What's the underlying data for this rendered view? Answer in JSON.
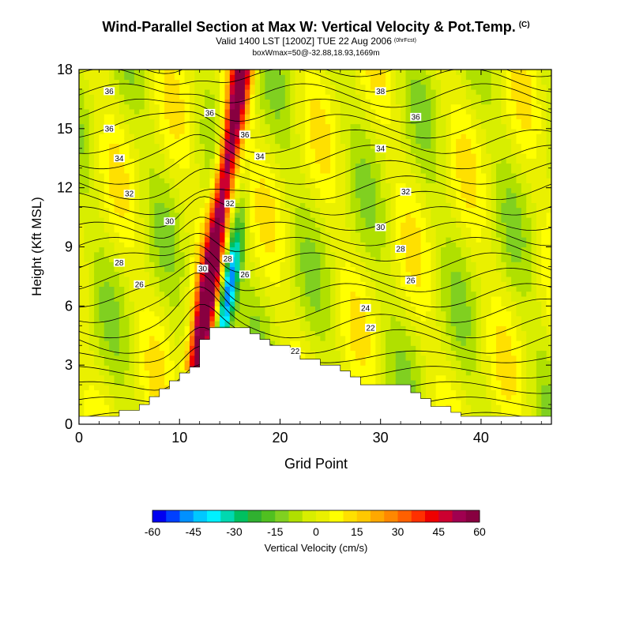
{
  "header": {
    "title": "Wind-Parallel Section at Max W: Vertical Velocity & Pot.Temp.",
    "title_mark": "(C)",
    "subtitle": "Valid 1400 LST [1200Z] TUE 22 Aug 2006",
    "subtitle_sup": "(0hrFcst)",
    "box_line": "boxWmax=50@-32.88,18.93,1669m"
  },
  "chart_data": {
    "type": "heatmap",
    "xlabel": "Grid Point",
    "ylabel": "Height (Kft MSL)",
    "xlim": [
      0,
      47
    ],
    "ylim": [
      0,
      18
    ],
    "x_ticks": [
      0,
      10,
      20,
      30,
      40
    ],
    "y_ticks": [
      0,
      3,
      6,
      9,
      12,
      15,
      18
    ],
    "colorbar": {
      "label": "Vertical Velocity (cm/s)",
      "tick_labels": [
        "-60",
        "-45",
        "-30",
        "-15",
        "0",
        "15",
        "30",
        "45",
        "60"
      ],
      "tick_values": [
        -60,
        -45,
        -30,
        -15,
        0,
        15,
        30,
        45,
        60
      ],
      "levels": [
        -60,
        -55,
        -50,
        -45,
        -40,
        -35,
        -30,
        -25,
        -20,
        -15,
        -10,
        -5,
        0,
        5,
        10,
        15,
        20,
        25,
        30,
        35,
        40,
        45,
        50,
        55,
        60
      ],
      "colors": [
        "#0000f0",
        "#0040ff",
        "#0090ff",
        "#00c8ff",
        "#00f0ff",
        "#00d8b0",
        "#00c060",
        "#30b030",
        "#50c020",
        "#80d020",
        "#b0e000",
        "#d8ee00",
        "#eaf000",
        "#ffff00",
        "#ffe000",
        "#ffc800",
        "#ffa800",
        "#ff8800",
        "#ff6000",
        "#ff3000",
        "#ee0000",
        "#cc0030",
        "#a00050",
        "#880040"
      ]
    },
    "terrain_top_kft": [
      [
        0,
        0.4
      ],
      [
        4,
        0.4
      ],
      [
        4,
        0.7
      ],
      [
        6,
        0.7
      ],
      [
        6,
        1.0
      ],
      [
        7,
        1.0
      ],
      [
        7,
        1.4
      ],
      [
        8,
        1.4
      ],
      [
        8,
        1.8
      ],
      [
        9,
        1.8
      ],
      [
        9,
        2.2
      ],
      [
        10,
        2.2
      ],
      [
        10,
        2.6
      ],
      [
        11,
        2.6
      ],
      [
        11,
        2.9
      ],
      [
        12,
        2.9
      ],
      [
        12,
        4.3
      ],
      [
        13,
        4.3
      ],
      [
        13,
        4.9
      ],
      [
        17,
        4.9
      ],
      [
        17,
        4.6
      ],
      [
        18,
        4.6
      ],
      [
        18,
        4.3
      ],
      [
        19,
        4.3
      ],
      [
        19,
        4.0
      ],
      [
        21,
        4.0
      ],
      [
        21,
        3.6
      ],
      [
        22,
        3.6
      ],
      [
        22,
        3.3
      ],
      [
        24,
        3.3
      ],
      [
        24,
        3.0
      ],
      [
        26,
        3.0
      ],
      [
        26,
        2.7
      ],
      [
        27,
        2.7
      ],
      [
        27,
        2.4
      ],
      [
        28,
        2.4
      ],
      [
        28,
        2.0
      ],
      [
        33,
        2.0
      ],
      [
        33,
        1.6
      ],
      [
        34,
        1.6
      ],
      [
        34,
        1.3
      ],
      [
        35,
        1.3
      ],
      [
        35,
        0.9
      ],
      [
        37,
        0.9
      ],
      [
        37,
        0.6
      ],
      [
        38,
        0.6
      ],
      [
        38,
        0.4
      ],
      [
        47,
        0.4
      ]
    ],
    "isentrope_labels": [
      {
        "text": "36",
        "x": 3,
        "y": 16.9
      },
      {
        "text": "36",
        "x": 3,
        "y": 15.0
      },
      {
        "text": "34",
        "x": 4,
        "y": 13.5
      },
      {
        "text": "32",
        "x": 5,
        "y": 11.7
      },
      {
        "text": "30",
        "x": 9,
        "y": 10.3
      },
      {
        "text": "28",
        "x": 4,
        "y": 8.2
      },
      {
        "text": "26",
        "x": 6,
        "y": 7.1
      },
      {
        "text": "36",
        "x": 13,
        "y": 15.8
      },
      {
        "text": "36",
        "x": 16.5,
        "y": 14.7
      },
      {
        "text": "34",
        "x": 18,
        "y": 13.6
      },
      {
        "text": "32",
        "x": 15,
        "y": 11.2
      },
      {
        "text": "30",
        "x": 12.3,
        "y": 7.9
      },
      {
        "text": "28",
        "x": 14.8,
        "y": 8.4
      },
      {
        "text": "26",
        "x": 16.5,
        "y": 7.6
      },
      {
        "text": "22",
        "x": 21.5,
        "y": 3.7
      },
      {
        "text": "38",
        "x": 30,
        "y": 16.9
      },
      {
        "text": "36",
        "x": 33.5,
        "y": 15.6
      },
      {
        "text": "34",
        "x": 30,
        "y": 14.0
      },
      {
        "text": "32",
        "x": 32.5,
        "y": 11.8
      },
      {
        "text": "30",
        "x": 30,
        "y": 10.0
      },
      {
        "text": "28",
        "x": 32,
        "y": 8.9
      },
      {
        "text": "26",
        "x": 33,
        "y": 7.3
      },
      {
        "text": "24",
        "x": 28.5,
        "y": 5.9
      },
      {
        "text": "22",
        "x": 29,
        "y": 4.9
      }
    ]
  }
}
